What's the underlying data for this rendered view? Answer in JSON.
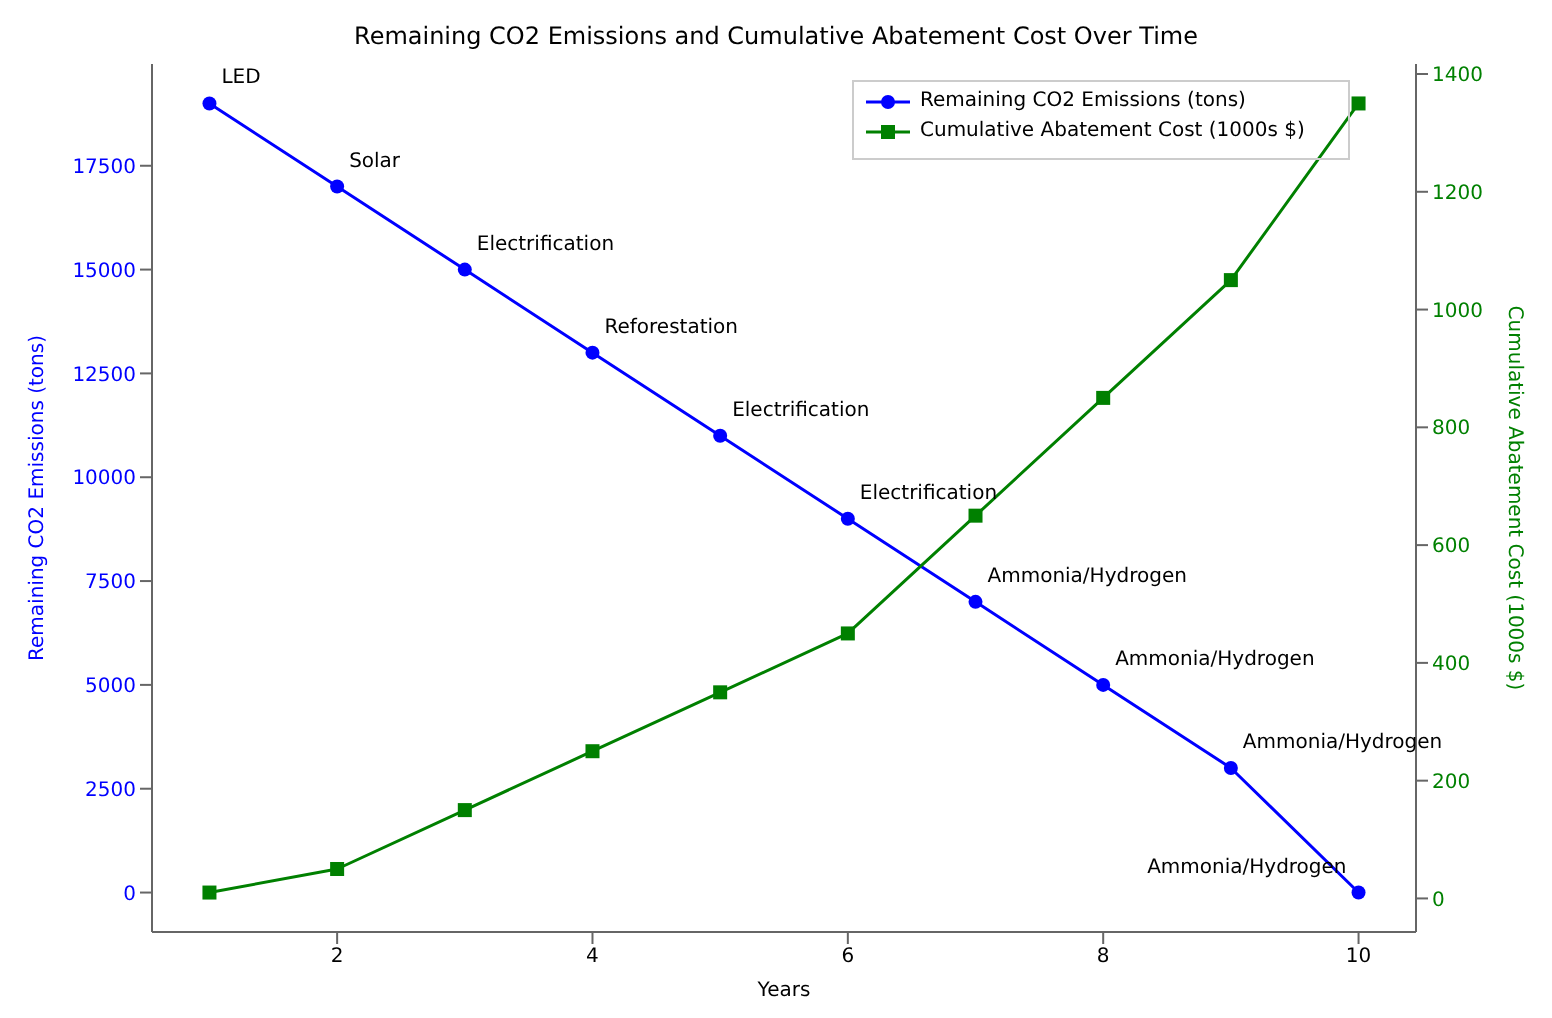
{
  "chart_data": {
    "type": "line",
    "title": "Remaining CO2 Emissions and Cumulative Abatement Cost Over Time",
    "xlabel": "Years",
    "ylabel": "Remaining CO2 Emissions (tons)",
    "y2label": "Cumulative Abatement Cost (1000s $)",
    "x": [
      1,
      2,
      3,
      4,
      5,
      6,
      7,
      8,
      9,
      10
    ],
    "series": [
      {
        "name": "Remaining CO2 Emissions (tons)",
        "color": "#0000ff",
        "values": [
          19000,
          17000,
          15000,
          13000,
          11000,
          9000,
          7000,
          5000,
          3000,
          0
        ],
        "marker": "circle"
      },
      {
        "name": "Cumulative Abatement Cost (1000s $)",
        "color": "#008000",
        "values": [
          10,
          50,
          150,
          250,
          350,
          450,
          650,
          850,
          1050,
          1350
        ],
        "axis": "y2",
        "marker": "square"
      }
    ],
    "xlim": [
      0.55,
      10.45
    ],
    "xticks": [
      2,
      4,
      6,
      8,
      10
    ],
    "ylim": [
      -950,
      19950
    ],
    "yticks": [
      0,
      2500,
      5000,
      7500,
      10000,
      12500,
      15000,
      17500
    ],
    "y2lim": [
      -57,
      1417
    ],
    "y2ticks": [
      0,
      200,
      400,
      600,
      800,
      1000,
      1200,
      1400
    ],
    "annotations": [
      {
        "text": "LED",
        "x": 1,
        "y": 19000
      },
      {
        "text": "Solar",
        "x": 2,
        "y": 17000
      },
      {
        "text": "Electrification",
        "x": 3,
        "y": 15000
      },
      {
        "text": "Reforestation",
        "x": 4,
        "y": 13000
      },
      {
        "text": "Electrification",
        "x": 5,
        "y": 11000
      },
      {
        "text": "Electrification",
        "x": 6,
        "y": 9000
      },
      {
        "text": "Ammonia/Hydrogen",
        "x": 7,
        "y": 7000
      },
      {
        "text": "Ammonia/Hydrogen",
        "x": 8,
        "y": 5000
      },
      {
        "text": "Ammonia/Hydrogen",
        "x": 9,
        "y": 3000
      },
      {
        "text": "Ammonia/Hydrogen",
        "x": 10,
        "y": 0
      }
    ],
    "legend": "top right",
    "grid": false
  }
}
